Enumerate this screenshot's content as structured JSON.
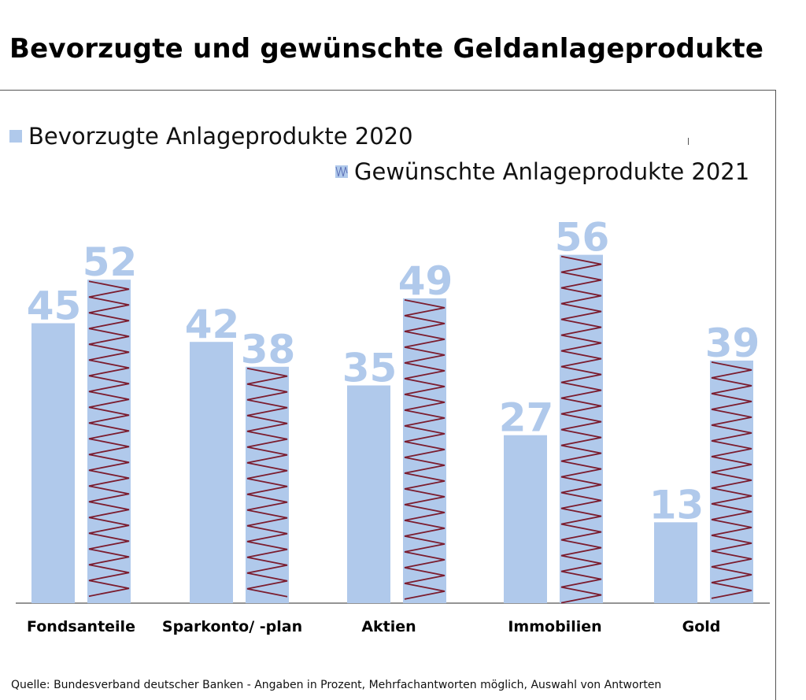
{
  "title": "Bevorzugte und gewünschte Geldanlageprodukte",
  "source": "Quelle: Bundesverband deutscher Banken - Angaben in Prozent, Mehrfachantworten möglich, Auswahl von Antworten",
  "colors": {
    "bar_fill": "#b0c9eb",
    "zigzag": "#7b1c2e",
    "value_label": "#b0c9eb",
    "axis": "#555555"
  },
  "chart_data": {
    "type": "bar",
    "title": "Bevorzugte und gewünschte Geldanlageprodukte",
    "xlabel": "",
    "ylabel": "",
    "ylim": [
      0,
      100
    ],
    "categories": [
      "Fondsanteile",
      "Sparkonto/ -plan",
      "Aktien",
      "Immobilien",
      "Gold"
    ],
    "series": [
      {
        "name": "Bevorzugte Anlageprodukte 2020",
        "values": [
          45,
          42,
          35,
          27,
          13
        ],
        "pattern": "solid"
      },
      {
        "name": "Gewünschte Anlageprodukte 2021",
        "values": [
          52,
          38,
          49,
          56,
          39
        ],
        "pattern": "zigzag"
      }
    ],
    "legend": "top-left",
    "grid": false
  }
}
